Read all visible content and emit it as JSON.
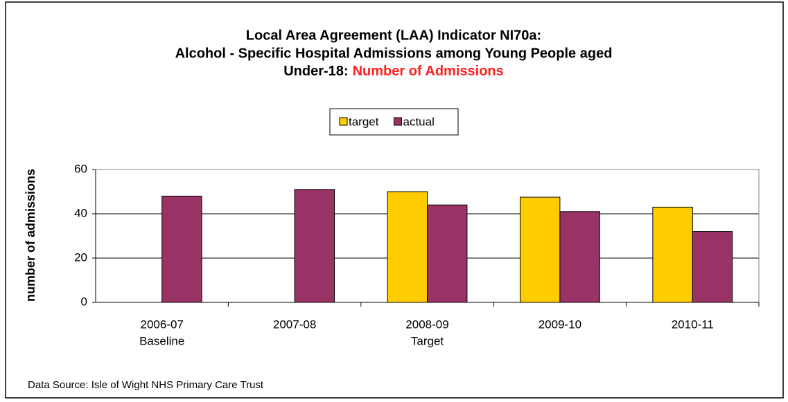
{
  "chart_data": {
    "type": "bar",
    "title": [
      "Local Area Agreement (LAA) Indicator NI70a:",
      "Alcohol - Specific Hospital Admissions among Young People aged",
      "Under-18:"
    ],
    "title_highlight": "Number of Admissions",
    "title_highlight_color": "#ff2020",
    "y_label": "number of admissions",
    "source": "Data Source: Isle of Wight NHS Primary Care Trust",
    "categories": [
      [
        "2006-07",
        "Baseline"
      ],
      [
        "2007-08"
      ],
      [
        "2008-09",
        "Target"
      ],
      [
        "2009-10"
      ],
      [
        "2010-11"
      ]
    ],
    "series": [
      {
        "name": "target",
        "color": "#ffcc00",
        "values": [
          null,
          null,
          50,
          47.5,
          43
        ]
      },
      {
        "name": "actual",
        "color": "#993366",
        "values": [
          48,
          51,
          44,
          41,
          32
        ]
      }
    ],
    "ylim": [
      0,
      60
    ],
    "yticks": [
      0,
      20,
      40,
      60
    ],
    "grid": true,
    "legend": "top"
  }
}
